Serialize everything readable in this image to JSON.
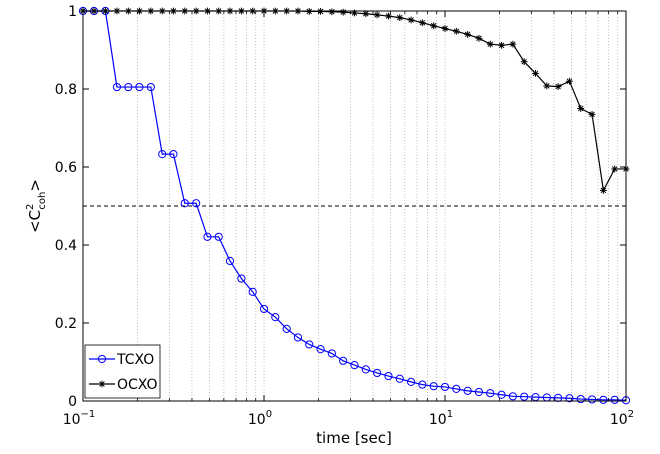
{
  "chart_data": {
    "type": "line",
    "xscale": "log",
    "xlim": [
      0.1,
      100
    ],
    "ylim": [
      0,
      1
    ],
    "grid": "x-minor-dotted",
    "xlabel": "time  [sec]",
    "ylabel": {
      "prefix": "<C",
      "sup": "2",
      "sub": "coh",
      "suffix": ">"
    },
    "x_ticks": [
      {
        "value": 0.1,
        "base": "10",
        "exp": "−1"
      },
      {
        "value": 1,
        "base": "10",
        "exp": "0"
      },
      {
        "value": 10,
        "base": "10",
        "exp": "1"
      },
      {
        "value": 100,
        "base": "10",
        "exp": "2"
      }
    ],
    "y_ticks": [
      {
        "value": 0,
        "label": "0"
      },
      {
        "value": 0.2,
        "label": "0.2"
      },
      {
        "value": 0.4,
        "label": "0.4"
      },
      {
        "value": 0.6,
        "label": "0.6"
      },
      {
        "value": 0.8,
        "label": "0.8"
      },
      {
        "value": 1,
        "label": "1"
      }
    ],
    "reference_line": {
      "y": 0.5,
      "style": "dashed",
      "color": "#000000"
    },
    "legend": {
      "position": "bottom-left"
    },
    "series": [
      {
        "name": "TCXO",
        "color": "#0000ff",
        "marker": "circle",
        "x": [
          0.1,
          0.115,
          0.133,
          0.154,
          0.178,
          0.205,
          0.237,
          0.274,
          0.316,
          0.365,
          0.422,
          0.487,
          0.562,
          0.649,
          0.75,
          0.866,
          1.0,
          1.155,
          1.334,
          1.54,
          1.778,
          2.054,
          2.371,
          2.738,
          3.162,
          3.652,
          4.217,
          4.87,
          5.623,
          6.494,
          7.499,
          8.66,
          10.0,
          11.55,
          13.34,
          15.4,
          17.78,
          20.54,
          23.71,
          27.38,
          31.62,
          36.52,
          42.17,
          48.7,
          56.23,
          64.94,
          74.99,
          86.6,
          100.0
        ],
        "y": [
          1.0,
          1.0,
          1.0,
          0.805,
          0.805,
          0.805,
          0.805,
          0.633,
          0.633,
          0.507,
          0.507,
          0.421,
          0.421,
          0.359,
          0.314,
          0.28,
          0.236,
          0.215,
          0.185,
          0.163,
          0.145,
          0.133,
          0.122,
          0.103,
          0.092,
          0.081,
          0.072,
          0.064,
          0.057,
          0.049,
          0.042,
          0.038,
          0.036,
          0.031,
          0.026,
          0.023,
          0.02,
          0.016,
          0.012,
          0.011,
          0.01,
          0.009,
          0.008,
          0.007,
          0.005,
          0.004,
          0.003,
          0.003,
          0.002
        ]
      },
      {
        "name": "OCXO",
        "color": "#000000",
        "marker": "asterisk",
        "x": [
          0.1,
          0.115,
          0.133,
          0.154,
          0.178,
          0.205,
          0.237,
          0.274,
          0.316,
          0.365,
          0.422,
          0.487,
          0.562,
          0.649,
          0.75,
          0.866,
          1.0,
          1.155,
          1.334,
          1.54,
          1.778,
          2.054,
          2.371,
          2.738,
          3.162,
          3.652,
          4.217,
          4.87,
          5.623,
          6.494,
          7.499,
          8.66,
          10.0,
          11.55,
          13.34,
          15.4,
          17.78,
          20.54,
          23.71,
          27.38,
          31.62,
          36.52,
          42.17,
          48.7,
          56.23,
          64.94,
          74.99,
          86.6,
          100.0
        ],
        "y": [
          1.0,
          1.0,
          1.0,
          1.0,
          1.0,
          1.0,
          1.0,
          1.0,
          1.0,
          1.0,
          1.0,
          1.0,
          1.0,
          1.0,
          1.0,
          1.0,
          1.0,
          1.0,
          1.0,
          1.0,
          0.999,
          0.999,
          0.998,
          0.997,
          0.995,
          0.993,
          0.99,
          0.987,
          0.983,
          0.977,
          0.97,
          0.962,
          0.955,
          0.948,
          0.94,
          0.93,
          0.915,
          0.912,
          0.915,
          0.87,
          0.84,
          0.808,
          0.806,
          0.82,
          0.75,
          0.735,
          0.54,
          0.595,
          0.595
        ]
      }
    ]
  }
}
